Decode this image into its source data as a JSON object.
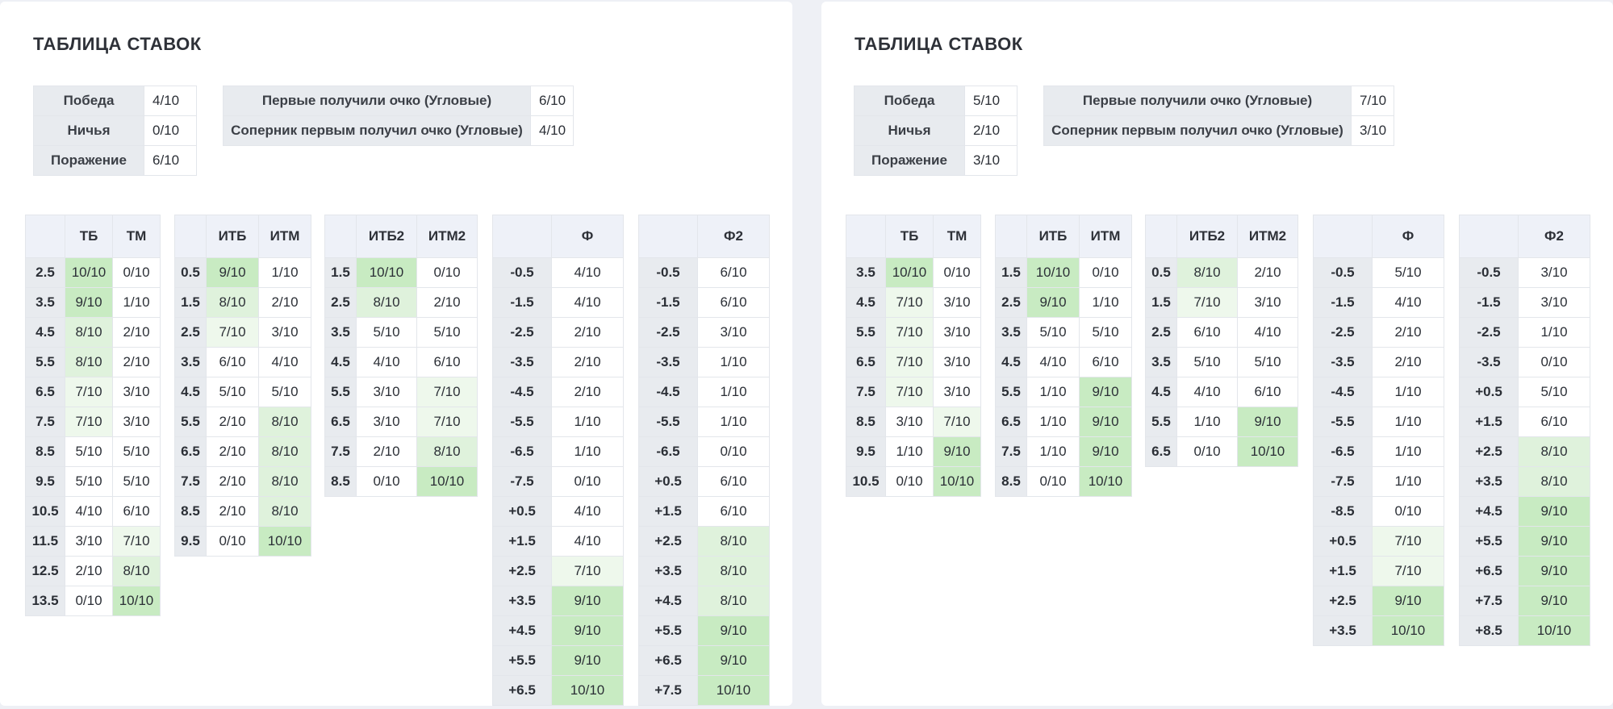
{
  "panels": [
    {
      "title": "ТАБЛИЦА СТАВОК",
      "results": [
        [
          "Победа",
          "4/10"
        ],
        [
          "Ничья",
          "0/10"
        ],
        [
          "Поражение",
          "6/10"
        ]
      ],
      "first_point": [
        [
          "Первые получили очко (Угловые)",
          "6/10"
        ],
        [
          "Соперник первым получил очко (Угловые)",
          "4/10"
        ]
      ],
      "tables": [
        {
          "headers": [
            "",
            "ТБ",
            "ТМ"
          ],
          "rows": [
            [
              "2.5",
              "10/10",
              "0/10"
            ],
            [
              "3.5",
              "9/10",
              "1/10"
            ],
            [
              "4.5",
              "8/10",
              "2/10"
            ],
            [
              "5.5",
              "8/10",
              "2/10"
            ],
            [
              "6.5",
              "7/10",
              "3/10"
            ],
            [
              "7.5",
              "7/10",
              "3/10"
            ],
            [
              "8.5",
              "5/10",
              "5/10"
            ],
            [
              "9.5",
              "5/10",
              "5/10"
            ],
            [
              "10.5",
              "4/10",
              "6/10"
            ],
            [
              "11.5",
              "3/10",
              "7/10"
            ],
            [
              "12.5",
              "2/10",
              "8/10"
            ],
            [
              "13.5",
              "0/10",
              "10/10"
            ]
          ]
        },
        {
          "headers": [
            "",
            "ИТБ",
            "ИТМ"
          ],
          "rows": [
            [
              "0.5",
              "9/10",
              "1/10"
            ],
            [
              "1.5",
              "8/10",
              "2/10"
            ],
            [
              "2.5",
              "7/10",
              "3/10"
            ],
            [
              "3.5",
              "6/10",
              "4/10"
            ],
            [
              "4.5",
              "5/10",
              "5/10"
            ],
            [
              "5.5",
              "2/10",
              "8/10"
            ],
            [
              "6.5",
              "2/10",
              "8/10"
            ],
            [
              "7.5",
              "2/10",
              "8/10"
            ],
            [
              "8.5",
              "2/10",
              "8/10"
            ],
            [
              "9.5",
              "0/10",
              "10/10"
            ]
          ]
        },
        {
          "headers": [
            "",
            "ИТБ2",
            "ИТМ2"
          ],
          "rows": [
            [
              "1.5",
              "10/10",
              "0/10"
            ],
            [
              "2.5",
              "8/10",
              "2/10"
            ],
            [
              "3.5",
              "5/10",
              "5/10"
            ],
            [
              "4.5",
              "4/10",
              "6/10"
            ],
            [
              "5.5",
              "3/10",
              "7/10"
            ],
            [
              "6.5",
              "3/10",
              "7/10"
            ],
            [
              "7.5",
              "2/10",
              "8/10"
            ],
            [
              "8.5",
              "0/10",
              "10/10"
            ]
          ]
        },
        {
          "headers": [
            "",
            "Ф"
          ],
          "rows": [
            [
              "-0.5",
              "4/10"
            ],
            [
              "-1.5",
              "4/10"
            ],
            [
              "-2.5",
              "2/10"
            ],
            [
              "-3.5",
              "2/10"
            ],
            [
              "-4.5",
              "2/10"
            ],
            [
              "-5.5",
              "1/10"
            ],
            [
              "-6.5",
              "1/10"
            ],
            [
              "-7.5",
              "0/10"
            ],
            [
              "+0.5",
              "4/10"
            ],
            [
              "+1.5",
              "4/10"
            ],
            [
              "+2.5",
              "7/10"
            ],
            [
              "+3.5",
              "9/10"
            ],
            [
              "+4.5",
              "9/10"
            ],
            [
              "+5.5",
              "9/10"
            ],
            [
              "+6.5",
              "10/10"
            ]
          ]
        },
        {
          "headers": [
            "",
            "Ф2"
          ],
          "rows": [
            [
              "-0.5",
              "6/10"
            ],
            [
              "-1.5",
              "6/10"
            ],
            [
              "-2.5",
              "3/10"
            ],
            [
              "-3.5",
              "1/10"
            ],
            [
              "-4.5",
              "1/10"
            ],
            [
              "-5.5",
              "1/10"
            ],
            [
              "-6.5",
              "0/10"
            ],
            [
              "+0.5",
              "6/10"
            ],
            [
              "+1.5",
              "6/10"
            ],
            [
              "+2.5",
              "8/10"
            ],
            [
              "+3.5",
              "8/10"
            ],
            [
              "+4.5",
              "8/10"
            ],
            [
              "+5.5",
              "9/10"
            ],
            [
              "+6.5",
              "9/10"
            ],
            [
              "+7.5",
              "10/10"
            ]
          ]
        }
      ]
    },
    {
      "title": "ТАБЛИЦА СТАВОК",
      "results": [
        [
          "Победа",
          "5/10"
        ],
        [
          "Ничья",
          "2/10"
        ],
        [
          "Поражение",
          "3/10"
        ]
      ],
      "first_point": [
        [
          "Первые получили очко (Угловые)",
          "7/10"
        ],
        [
          "Соперник первым получил очко (Угловые)",
          "3/10"
        ]
      ],
      "tables": [
        {
          "headers": [
            "",
            "ТБ",
            "ТМ"
          ],
          "rows": [
            [
              "3.5",
              "10/10",
              "0/10"
            ],
            [
              "4.5",
              "7/10",
              "3/10"
            ],
            [
              "5.5",
              "7/10",
              "3/10"
            ],
            [
              "6.5",
              "7/10",
              "3/10"
            ],
            [
              "7.5",
              "7/10",
              "3/10"
            ],
            [
              "8.5",
              "3/10",
              "7/10"
            ],
            [
              "9.5",
              "1/10",
              "9/10"
            ],
            [
              "10.5",
              "0/10",
              "10/10"
            ]
          ]
        },
        {
          "headers": [
            "",
            "ИТБ",
            "ИТМ"
          ],
          "rows": [
            [
              "1.5",
              "10/10",
              "0/10"
            ],
            [
              "2.5",
              "9/10",
              "1/10"
            ],
            [
              "3.5",
              "5/10",
              "5/10"
            ],
            [
              "4.5",
              "4/10",
              "6/10"
            ],
            [
              "5.5",
              "1/10",
              "9/10"
            ],
            [
              "6.5",
              "1/10",
              "9/10"
            ],
            [
              "7.5",
              "1/10",
              "9/10"
            ],
            [
              "8.5",
              "0/10",
              "10/10"
            ]
          ]
        },
        {
          "headers": [
            "",
            "ИТБ2",
            "ИТМ2"
          ],
          "rows": [
            [
              "0.5",
              "8/10",
              "2/10"
            ],
            [
              "1.5",
              "7/10",
              "3/10"
            ],
            [
              "2.5",
              "6/10",
              "4/10"
            ],
            [
              "3.5",
              "5/10",
              "5/10"
            ],
            [
              "4.5",
              "4/10",
              "6/10"
            ],
            [
              "5.5",
              "1/10",
              "9/10"
            ],
            [
              "6.5",
              "0/10",
              "10/10"
            ]
          ]
        },
        {
          "headers": [
            "",
            "Ф"
          ],
          "rows": [
            [
              "-0.5",
              "5/10"
            ],
            [
              "-1.5",
              "4/10"
            ],
            [
              "-2.5",
              "2/10"
            ],
            [
              "-3.5",
              "2/10"
            ],
            [
              "-4.5",
              "1/10"
            ],
            [
              "-5.5",
              "1/10"
            ],
            [
              "-6.5",
              "1/10"
            ],
            [
              "-7.5",
              "1/10"
            ],
            [
              "-8.5",
              "0/10"
            ],
            [
              "+0.5",
              "7/10"
            ],
            [
              "+1.5",
              "7/10"
            ],
            [
              "+2.5",
              "9/10"
            ],
            [
              "+3.5",
              "10/10"
            ]
          ]
        },
        {
          "headers": [
            "",
            "Ф2"
          ],
          "rows": [
            [
              "-0.5",
              "3/10"
            ],
            [
              "-1.5",
              "3/10"
            ],
            [
              "-2.5",
              "1/10"
            ],
            [
              "-3.5",
              "0/10"
            ],
            [
              "+0.5",
              "5/10"
            ],
            [
              "+1.5",
              "6/10"
            ],
            [
              "+2.5",
              "8/10"
            ],
            [
              "+3.5",
              "8/10"
            ],
            [
              "+4.5",
              "9/10"
            ],
            [
              "+5.5",
              "9/10"
            ],
            [
              "+6.5",
              "9/10"
            ],
            [
              "+7.5",
              "9/10"
            ],
            [
              "+8.5",
              "10/10"
            ]
          ]
        }
      ]
    }
  ]
}
